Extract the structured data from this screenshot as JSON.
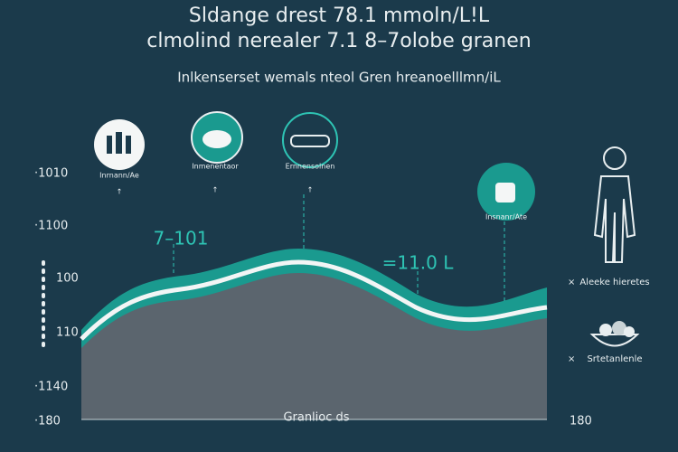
{
  "header": {
    "title": [
      "Sldange drest 78.1 mmoln/L!L",
      "clmolind nerealer 7.1 8–7olobe granen"
    ],
    "subtitle": "Inlkenserset wemals nteol Gren hreanoelllmn/iL"
  },
  "icons": [
    {
      "label": "Inrnann/Ae"
    },
    {
      "label": "Inmenentaor"
    },
    {
      "label": "Ernnensolnen"
    },
    {
      "label": "Insnanr/Ate"
    }
  ],
  "annotations": [
    "7–101",
    "=11.0 L"
  ],
  "axis": {
    "left_labels": [
      "·1010",
      "·1100",
      "100",
      "110",
      "·1140",
      "·180"
    ],
    "right_label": "180"
  },
  "side_labels": [
    "Aleeke hieretes",
    "Srtetanlenle"
  ],
  "footer": "Granlioc ds"
}
